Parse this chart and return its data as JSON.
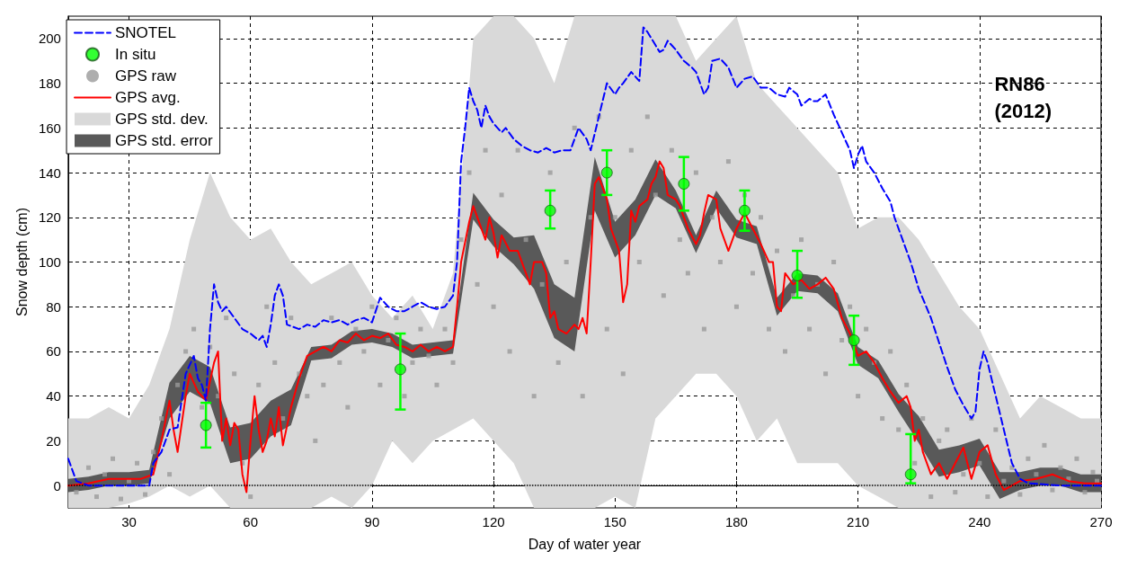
{
  "chart_data": {
    "type": "line",
    "xlabel": "Day of water year",
    "ylabel": "Snow depth (cm)",
    "annotations": [
      "RN86\n(2012)"
    ],
    "xlim": [
      15,
      270
    ],
    "xticks": [
      30,
      60,
      90,
      120,
      150,
      180,
      210,
      240,
      270
    ],
    "ylim": [
      -10,
      210
    ],
    "yticks": [
      0,
      20,
      40,
      60,
      80,
      100,
      120,
      140,
      160,
      180,
      200
    ],
    "grid": true,
    "legend": "top left",
    "ref_lines": [
      {
        "axis": "y",
        "value": 0,
        "color": "#000000",
        "line_style": "dotted"
      }
    ],
    "series": [
      {
        "name": "SNOTEL",
        "type": "line",
        "color": "#0000ff",
        "line_style": "dashed",
        "marker": "none",
        "x": [
          15,
          17,
          20,
          30,
          35,
          36,
          38,
          40,
          42,
          44,
          46,
          47,
          48,
          49,
          50,
          51,
          52,
          53,
          54,
          56,
          58,
          60,
          62,
          63,
          64,
          65,
          66,
          67,
          68,
          69,
          72,
          74,
          76,
          78,
          80,
          82,
          84,
          86,
          88,
          90,
          92,
          94,
          96,
          98,
          100,
          102,
          104,
          106,
          108,
          110,
          111,
          112,
          113,
          114,
          115,
          116,
          117,
          118,
          119,
          120,
          122,
          123,
          125,
          127,
          129,
          131,
          133,
          135,
          137,
          139,
          141,
          143,
          144,
          146,
          148,
          150,
          151,
          152,
          154,
          156,
          157,
          158,
          160,
          161,
          162,
          163,
          165,
          167,
          169,
          170,
          172,
          173,
          174,
          176,
          178,
          180,
          182,
          184,
          186,
          188,
          190,
          192,
          193,
          195,
          196,
          198,
          199,
          200,
          202,
          204,
          206,
          208,
          209,
          210,
          211,
          212,
          214,
          216,
          218,
          219,
          221,
          223,
          225,
          228,
          230,
          232,
          234,
          236,
          238,
          239,
          240,
          241,
          242,
          244,
          246,
          248,
          250,
          252,
          260,
          270
        ],
        "values": [
          12,
          2,
          0,
          0,
          0,
          10,
          15,
          25,
          26,
          50,
          58,
          48,
          45,
          38,
          70,
          90,
          82,
          78,
          80,
          75,
          70,
          68,
          65,
          67,
          62,
          72,
          85,
          90,
          85,
          72,
          70,
          72,
          71,
          74,
          73,
          74,
          72,
          74,
          75,
          73,
          84,
          80,
          78,
          78,
          80,
          82,
          80,
          79,
          80,
          85,
          100,
          145,
          160,
          178,
          172,
          168,
          160,
          170,
          165,
          162,
          158,
          160,
          155,
          152,
          150,
          149,
          151,
          149,
          150,
          150,
          160,
          155,
          150,
          165,
          180,
          175,
          178,
          180,
          185,
          181,
          205,
          203,
          197,
          194,
          195,
          199,
          195,
          190,
          187,
          185,
          175,
          178,
          190,
          191,
          187,
          178,
          182,
          183,
          178,
          178,
          175,
          174,
          178,
          175,
          170,
          173,
          172,
          172,
          175,
          166,
          158,
          150,
          142,
          148,
          152,
          145,
          140,
          133,
          127,
          120,
          110,
          100,
          88,
          75,
          64,
          53,
          43,
          36,
          30,
          33,
          52,
          60,
          55,
          40,
          25,
          10,
          3,
          1,
          0,
          0
        ]
      },
      {
        "name": "In situ",
        "type": "scatter",
        "color": "#00ff00",
        "marker": "circle",
        "x": [
          49,
          97,
          134,
          148,
          167,
          182,
          195,
          209,
          223
        ],
        "values": [
          27,
          52,
          123,
          140,
          135,
          123,
          94,
          65,
          5
        ],
        "errors": [
          [
            17,
            37
          ],
          [
            34,
            68
          ],
          [
            115,
            132
          ],
          [
            130,
            150
          ],
          [
            123,
            147
          ],
          [
            114,
            132
          ],
          [
            84,
            105
          ],
          [
            54,
            76
          ],
          [
            1,
            23
          ]
        ]
      },
      {
        "name": "GPS raw",
        "type": "scatter",
        "color": "#9a9a9a",
        "marker": "square",
        "x": [
          17,
          20,
          22,
          24,
          26,
          28,
          30,
          32,
          34,
          36,
          38,
          40,
          42,
          44,
          46,
          48,
          50,
          52,
          54,
          56,
          58,
          60,
          62,
          64,
          66,
          68,
          70,
          72,
          74,
          76,
          78,
          80,
          82,
          84,
          86,
          88,
          90,
          92,
          94,
          96,
          98,
          100,
          102,
          104,
          106,
          108,
          110,
          112,
          114,
          116,
          118,
          120,
          122,
          124,
          126,
          128,
          130,
          132,
          134,
          136,
          138,
          140,
          142,
          144,
          146,
          148,
          150,
          152,
          154,
          156,
          158,
          160,
          162,
          164,
          166,
          168,
          170,
          172,
          174,
          176,
          178,
          180,
          182,
          184,
          186,
          188,
          190,
          192,
          194,
          196,
          198,
          200,
          202,
          204,
          206,
          208,
          210,
          212,
          214,
          216,
          218,
          220,
          222,
          224,
          226,
          228,
          230,
          232,
          234,
          236,
          238,
          240,
          242,
          244,
          246,
          248,
          250,
          252,
          254,
          256,
          258,
          260,
          262,
          264,
          266,
          268,
          269
        ],
        "values": [
          -3,
          8,
          -5,
          5,
          12,
          -6,
          2,
          10,
          -4,
          15,
          30,
          5,
          45,
          60,
          70,
          35,
          62,
          40,
          75,
          50,
          10,
          -5,
          45,
          80,
          55,
          30,
          75,
          50,
          40,
          20,
          45,
          75,
          55,
          35,
          70,
          60,
          80,
          45,
          65,
          75,
          40,
          55,
          70,
          58,
          45,
          70,
          55,
          110,
          140,
          90,
          150,
          80,
          130,
          60,
          150,
          110,
          40,
          90,
          140,
          55,
          100,
          160,
          40,
          120,
          165,
          70,
          120,
          50,
          150,
          100,
          165,
          130,
          85,
          150,
          110,
          95,
          140,
          70,
          120,
          100,
          145,
          80,
          130,
          95,
          120,
          70,
          105,
          60,
          85,
          110,
          70,
          90,
          50,
          100,
          65,
          80,
          40,
          70,
          55,
          30,
          60,
          25,
          45,
          10,
          30,
          -5,
          20,
          25,
          -3,
          5,
          30,
          10,
          -5,
          25,
          2,
          8,
          -4,
          12,
          5,
          18,
          -2,
          8,
          3,
          12,
          -3,
          6,
          2
        ]
      },
      {
        "name": "GPS avg.",
        "type": "line",
        "color": "#ff0000",
        "line_style": "solid",
        "marker": "none",
        "x": [
          15,
          20,
          25,
          30,
          33,
          36,
          38,
          40,
          41,
          42,
          44,
          45,
          47,
          49,
          51,
          52,
          53,
          54,
          55,
          56,
          57,
          58,
          59,
          60,
          61,
          62,
          63,
          64,
          65,
          66,
          67,
          68,
          70,
          72,
          74,
          76,
          78,
          80,
          82,
          84,
          86,
          88,
          90,
          92,
          94,
          96,
          98,
          100,
          102,
          104,
          106,
          108,
          110,
          111,
          112,
          114,
          115,
          117,
          118,
          119,
          120,
          121,
          122,
          124,
          126,
          128,
          129,
          130,
          132,
          133,
          134,
          135,
          136,
          138,
          140,
          141,
          142,
          143,
          144,
          145,
          146,
          148,
          149,
          150,
          151,
          152,
          153,
          154,
          155,
          156,
          158,
          159,
          160,
          161,
          162,
          163,
          165,
          166,
          168,
          170,
          171,
          172,
          173,
          175,
          176,
          178,
          180,
          182,
          184,
          186,
          188,
          189,
          190,
          191,
          192,
          194,
          196,
          198,
          200,
          202,
          204,
          206,
          208,
          210,
          212,
          214,
          216,
          218,
          220,
          222,
          223,
          224,
          225,
          226,
          228,
          230,
          232,
          234,
          236,
          238,
          240,
          242,
          244,
          246,
          248,
          250,
          254,
          258,
          262,
          266,
          270
        ],
        "values": [
          0,
          1,
          3,
          3,
          3,
          5,
          20,
          38,
          25,
          15,
          40,
          50,
          42,
          38,
          55,
          60,
          20,
          30,
          18,
          28,
          25,
          5,
          -3,
          20,
          40,
          25,
          15,
          20,
          30,
          22,
          35,
          18,
          35,
          48,
          58,
          60,
          62,
          60,
          65,
          64,
          68,
          65,
          67,
          66,
          68,
          63,
          62,
          60,
          63,
          60,
          62,
          60,
          62,
          80,
          100,
          118,
          125,
          115,
          110,
          120,
          113,
          102,
          112,
          105,
          105,
          95,
          90,
          100,
          100,
          95,
          75,
          78,
          70,
          68,
          72,
          70,
          75,
          68,
          100,
          135,
          138,
          128,
          115,
          110,
          105,
          82,
          90,
          123,
          118,
          125,
          128,
          135,
          138,
          145,
          142,
          130,
          128,
          125,
          115,
          108,
          112,
          122,
          130,
          128,
          115,
          105,
          115,
          122,
          115,
          108,
          100,
          100,
          80,
          78,
          95,
          90,
          92,
          88,
          90,
          93,
          88,
          75,
          68,
          58,
          60,
          55,
          48,
          42,
          37,
          40,
          35,
          20,
          25,
          15,
          5,
          10,
          3,
          10,
          17,
          3,
          15,
          18,
          5,
          -2,
          0,
          2,
          3,
          5,
          2,
          1,
          1
        ]
      },
      {
        "name": "GPS std. dev.",
        "type": "area",
        "color": "#d9d9d9",
        "x": [
          15,
          20,
          25,
          30,
          35,
          40,
          45,
          50,
          55,
          60,
          65,
          70,
          75,
          80,
          85,
          90,
          95,
          100,
          105,
          110,
          115,
          120,
          125,
          130,
          135,
          140,
          145,
          150,
          155,
          160,
          165,
          170,
          175,
          180,
          185,
          190,
          195,
          200,
          205,
          210,
          215,
          220,
          225,
          230,
          235,
          240,
          245,
          250,
          255,
          260,
          265,
          270
        ],
        "values": [
          null,
          null,
          null,
          null,
          null,
          null,
          null,
          null,
          null,
          null,
          null,
          null,
          null,
          null,
          null,
          null,
          null,
          null,
          null,
          null,
          null,
          null,
          null,
          null,
          null,
          null,
          null,
          null,
          null,
          null,
          null,
          null,
          null,
          null,
          null,
          null,
          null,
          null,
          null,
          null,
          null,
          null,
          null,
          null,
          null,
          null,
          null,
          null,
          null,
          null,
          null,
          null
        ],
        "lower": [
          -10,
          -10,
          -10,
          -8,
          -5,
          0,
          -5,
          0,
          -10,
          -10,
          -10,
          -10,
          -10,
          -5,
          -10,
          0,
          20,
          10,
          20,
          25,
          30,
          20,
          10,
          -10,
          -10,
          -10,
          -10,
          -5,
          -10,
          30,
          40,
          50,
          50,
          40,
          20,
          30,
          10,
          10,
          10,
          0,
          -5,
          -10,
          -10,
          -10,
          -10,
          -10,
          -10,
          -10,
          -10,
          -10,
          -10,
          -10
        ],
        "upper": [
          30,
          30,
          35,
          30,
          45,
          70,
          110,
          140,
          120,
          110,
          115,
          100,
          90,
          95,
          100,
          85,
          75,
          85,
          70,
          95,
          200,
          210,
          210,
          200,
          180,
          210,
          210,
          210,
          210,
          210,
          210,
          190,
          200,
          210,
          180,
          170,
          160,
          150,
          140,
          115,
          120,
          120,
          110,
          95,
          80,
          70,
          50,
          30,
          40,
          35,
          30,
          30
        ]
      },
      {
        "name": "GPS std. error",
        "type": "area",
        "color": "#595959",
        "x": [
          15,
          20,
          25,
          30,
          35,
          40,
          45,
          50,
          55,
          60,
          65,
          70,
          75,
          80,
          85,
          90,
          95,
          100,
          105,
          110,
          115,
          120,
          125,
          130,
          135,
          140,
          145,
          150,
          155,
          160,
          165,
          170,
          175,
          180,
          185,
          190,
          195,
          200,
          205,
          210,
          215,
          220,
          225,
          230,
          235,
          240,
          245,
          250,
          255,
          260,
          265,
          270
        ],
        "values": [
          null,
          null,
          null,
          null,
          null,
          null,
          null,
          null,
          null,
          null,
          null,
          null,
          null,
          null,
          null,
          null,
          null,
          null,
          null,
          null,
          null,
          null,
          null,
          null,
          null,
          null,
          null,
          null,
          null,
          null,
          null,
          null,
          null,
          null,
          null,
          null,
          null,
          null,
          null,
          null,
          null,
          null,
          null,
          null,
          null,
          null,
          null,
          null,
          null,
          null,
          null,
          null
        ],
        "lower": [
          -3,
          -2,
          0,
          0,
          1,
          30,
          42,
          37,
          10,
          12,
          22,
          27,
          56,
          57,
          63,
          64,
          62,
          57,
          58,
          59,
          119,
          107,
          99,
          88,
          66,
          60,
          123,
          102,
          112,
          130,
          124,
          104,
          124,
          111,
          108,
          76,
          87,
          86,
          78,
          54,
          48,
          33,
          19,
          4,
          6,
          9,
          -6,
          -2,
          0,
          0,
          -3,
          -3
        ],
        "upper": [
          3,
          4,
          6,
          6,
          7,
          46,
          58,
          53,
          26,
          28,
          38,
          43,
          62,
          63,
          69,
          70,
          68,
          63,
          64,
          65,
          131,
          119,
          111,
          112,
          90,
          84,
          147,
          118,
          128,
          146,
          132,
          112,
          132,
          119,
          116,
          84,
          95,
          94,
          86,
          62,
          56,
          41,
          31,
          16,
          18,
          21,
          6,
          6,
          8,
          8,
          5,
          5
        ]
      }
    ]
  }
}
